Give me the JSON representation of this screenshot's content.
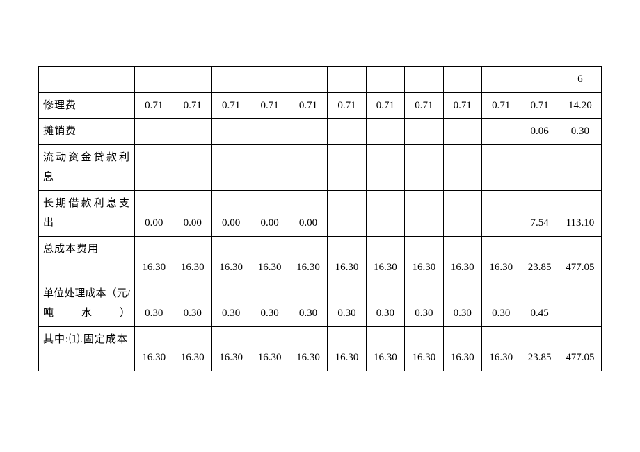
{
  "table": {
    "border_color": "#000000",
    "background_color": "#ffffff",
    "font_family": "SimSun",
    "font_size": 15,
    "text_color": "#000000",
    "column_widths": {
      "label": 122,
      "data": 49,
      "last": 54
    },
    "rows": [
      {
        "label": "",
        "cells": [
          "",
          "",
          "",
          "",
          "",
          "",
          "",
          "",
          "",
          "",
          "",
          "6"
        ],
        "tall": false
      },
      {
        "label": "修理费",
        "cells": [
          "0.71",
          "0.71",
          "0.71",
          "0.71",
          "0.71",
          "0.71",
          "0.71",
          "0.71",
          "0.71",
          "0.71",
          "0.71",
          "14.20"
        ],
        "tall": false
      },
      {
        "label": "摊销费",
        "cells": [
          "",
          "",
          "",
          "",
          "",
          "",
          "",
          "",
          "",
          "",
          "0.06",
          "0.30"
        ],
        "tall": false
      },
      {
        "label": "流动资金贷款利息",
        "cells": [
          "",
          "",
          "",
          "",
          "",
          "",
          "",
          "",
          "",
          "",
          "",
          ""
        ],
        "tall": true
      },
      {
        "label": "长期借款利息支出",
        "cells": [
          "0.00",
          "0.00",
          "0.00",
          "0.00",
          "0.00",
          "",
          "",
          "",
          "",
          "",
          "7.54",
          "113.10"
        ],
        "tall": true
      },
      {
        "label": "总成本费用",
        "cells": [
          "16.30",
          "16.30",
          "16.30",
          "16.30",
          "16.30",
          "16.30",
          "16.30",
          "16.30",
          "16.30",
          "16.30",
          "23.85",
          "477.05"
        ],
        "tall": true
      },
      {
        "label": "单位处理成本（元/吨水）",
        "cells": [
          "0.30",
          "0.30",
          "0.30",
          "0.30",
          "0.30",
          "0.30",
          "0.30",
          "0.30",
          "0.30",
          "0.30",
          "0.45",
          ""
        ],
        "tall": true,
        "spread": true
      },
      {
        "label": "其中:⑴.固定成本",
        "cells": [
          "16.30",
          "16.30",
          "16.30",
          "16.30",
          "16.30",
          "16.30",
          "16.30",
          "16.30",
          "16.30",
          "16.30",
          "23.85",
          "477.05"
        ],
        "tall": true
      }
    ]
  }
}
